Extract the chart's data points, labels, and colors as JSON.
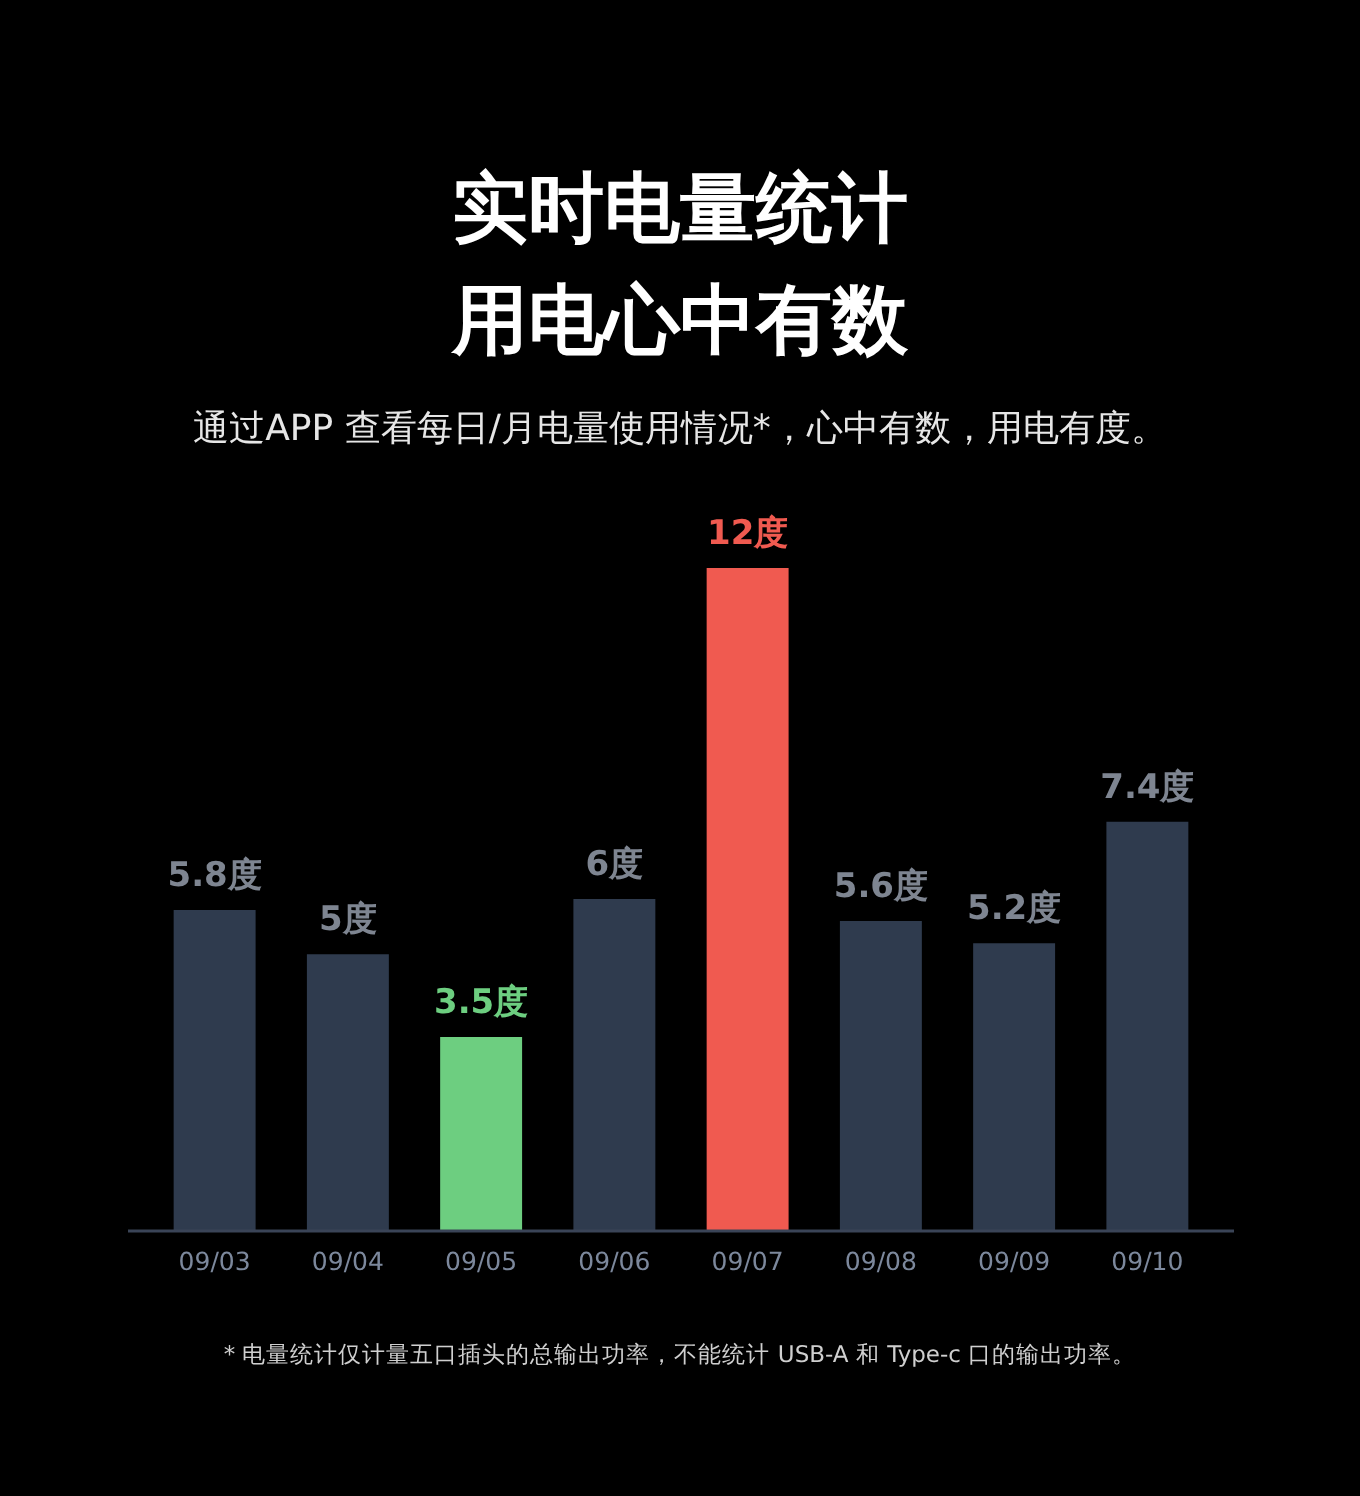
{
  "chart_data": {
    "type": "bar",
    "title": "实时电量统计用电心中有数",
    "subtitle": "通过APP 查看每日/月电量使用情况*，心中有数，用电有度。",
    "categories": [
      "09/03",
      "09/04",
      "09/05",
      "09/06",
      "09/07",
      "09/08",
      "09/09",
      "09/10"
    ],
    "values": [
      5.8,
      5,
      3.5,
      6,
      12,
      5.6,
      5.2,
      7.4
    ],
    "colors": [
      "#2f3b4e",
      "#2f3b4e",
      "#6dce80",
      "#2f3b4e",
      "#f05a50",
      "#2f3b4e",
      "#2f3b4e",
      "#2f3b4e"
    ],
    "value_labels": [
      "5.8度",
      "5度",
      "3.5度",
      "6度",
      "12度",
      "5.6度",
      "5.2度",
      "7.4度"
    ],
    "annotations": [
      "* 电量统计仅计量五口插头的总输出功率，不能统计 USB-A 和 Type-c 口的输出功率。"
    ],
    "grid": false,
    "legend": false
  }
}
